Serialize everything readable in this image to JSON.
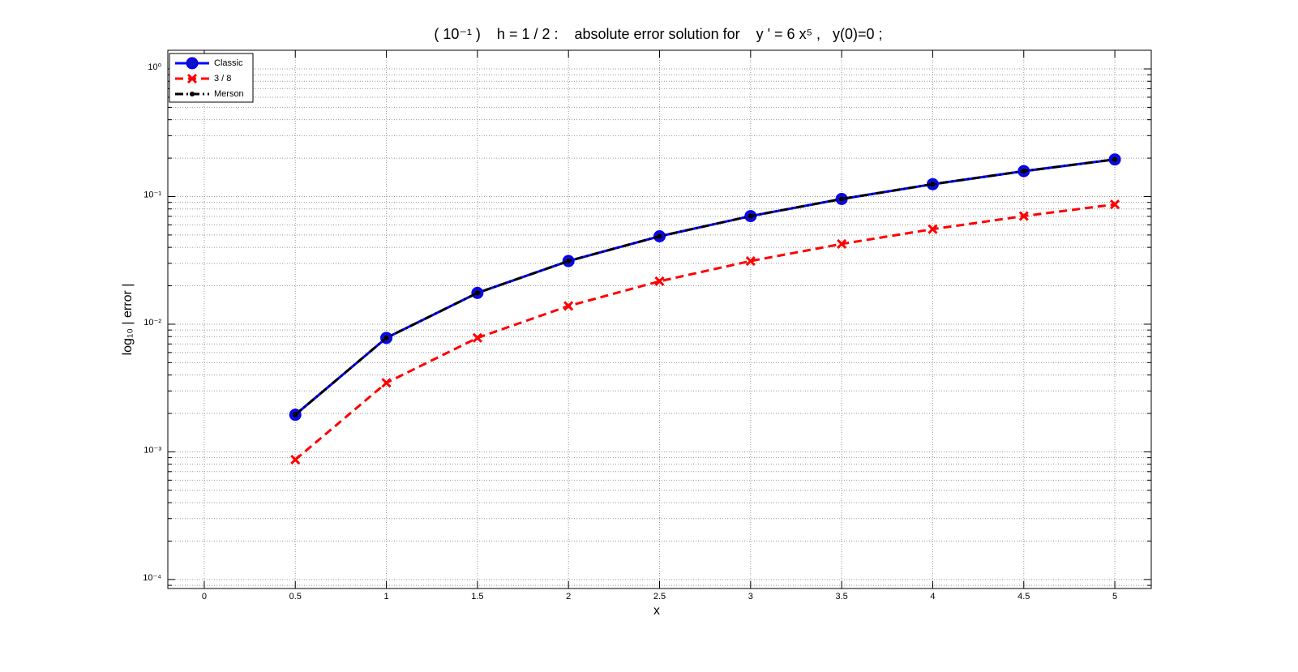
{
  "chart_data": {
    "type": "line",
    "title": "( 10⁻¹ )    h = 1 / 2 :    absolute error solution for    y ' = 6 x⁵ ,   y(0)=0 ;",
    "x_label": "x",
    "y_label": "log₁₀ | error |",
    "log_y": true,
    "grid": true,
    "minor_grid": true,
    "legend_position": "upper-left",
    "xlim": [
      -0.2,
      5.2
    ],
    "xticks": [
      0,
      0.5,
      1,
      1.5,
      2,
      2.5,
      3,
      3.5,
      4,
      4.5,
      5
    ],
    "ylim": [
      8.5e-05,
      1.4
    ],
    "yticks": [
      {
        "value": 0.0001,
        "label": "10⁻⁴"
      },
      {
        "value": 0.001,
        "label": "10⁻³"
      },
      {
        "value": 0.01,
        "label": "10⁻²"
      },
      {
        "value": 0.1,
        "label": "10⁻¹"
      },
      {
        "value": 1,
        "label": "10⁰"
      }
    ],
    "x": [
      0.5,
      1,
      1.5,
      2,
      2.5,
      3,
      3.5,
      4,
      4.5,
      5
    ],
    "series": [
      {
        "name": "Classic",
        "color": "#0000ff",
        "linestyle": "solid",
        "marker": "circle",
        "values": [
          0.001953,
          0.0078125,
          0.017578,
          0.03125,
          0.048828,
          0.0703125,
          0.095703,
          0.125,
          0.158203,
          0.195313
        ]
      },
      {
        "name": "3 / 8",
        "color": "#ff0000",
        "linestyle": "dashed",
        "marker": "cross",
        "values": [
          0.000868,
          0.003472,
          0.007813,
          0.013889,
          0.021701,
          0.03125,
          0.042535,
          0.055556,
          0.070313,
          0.086806
        ]
      },
      {
        "name": "Merson",
        "color": "#000000",
        "linestyle": "dashdot",
        "marker": "dot",
        "values": [
          0.001953,
          0.0078125,
          0.017578,
          0.03125,
          0.048828,
          0.0703125,
          0.095703,
          0.125,
          0.158203,
          0.195313
        ]
      }
    ]
  }
}
